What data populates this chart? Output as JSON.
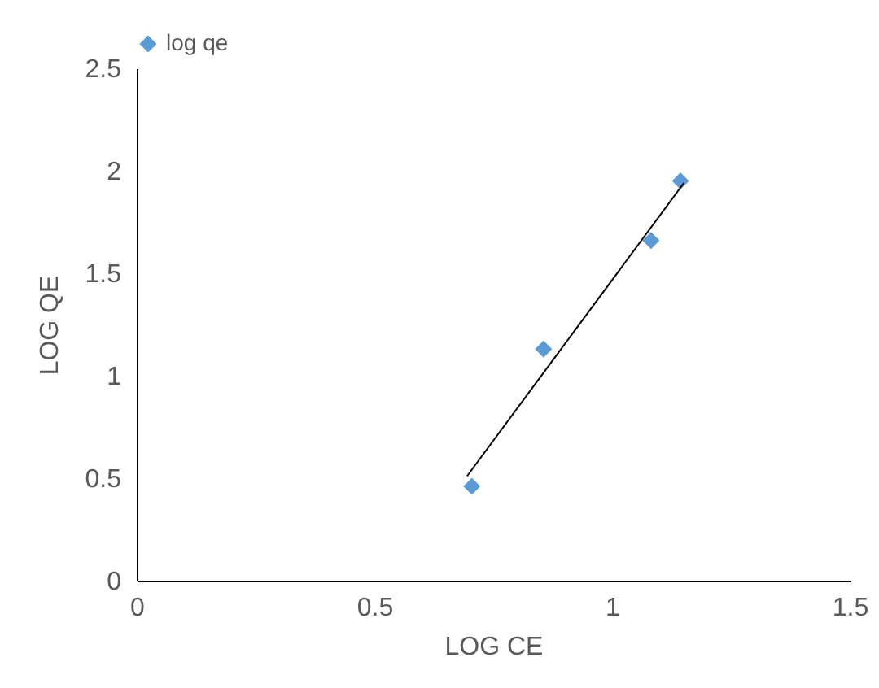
{
  "chart_data": {
    "type": "scatter",
    "xlabel": "LOG CE",
    "ylabel": "LOG QE",
    "series": [
      {
        "name": "log qe",
        "type": "scatter",
        "color": "#5b9bd5",
        "marker": "diamond",
        "x": [
          0.705,
          0.856,
          1.082,
          1.144
        ],
        "values": [
          0.46,
          1.13,
          1.66,
          1.95
        ]
      },
      {
        "type": "line",
        "color": "#000000",
        "marker": "none",
        "x": [
          0.695,
          1.151
        ],
        "values": [
          0.51,
          1.94
        ]
      }
    ],
    "xlim": [
      0,
      1.5
    ],
    "xticks": [
      0,
      {
        "value": 0.5,
        "label": "0.5"
      },
      1,
      1.5
    ],
    "ylim": [
      0,
      2.5
    ],
    "yticks": [
      0,
      0.5,
      1,
      1.5,
      2,
      2.5
    ],
    "grid": false,
    "legend": "top"
  }
}
